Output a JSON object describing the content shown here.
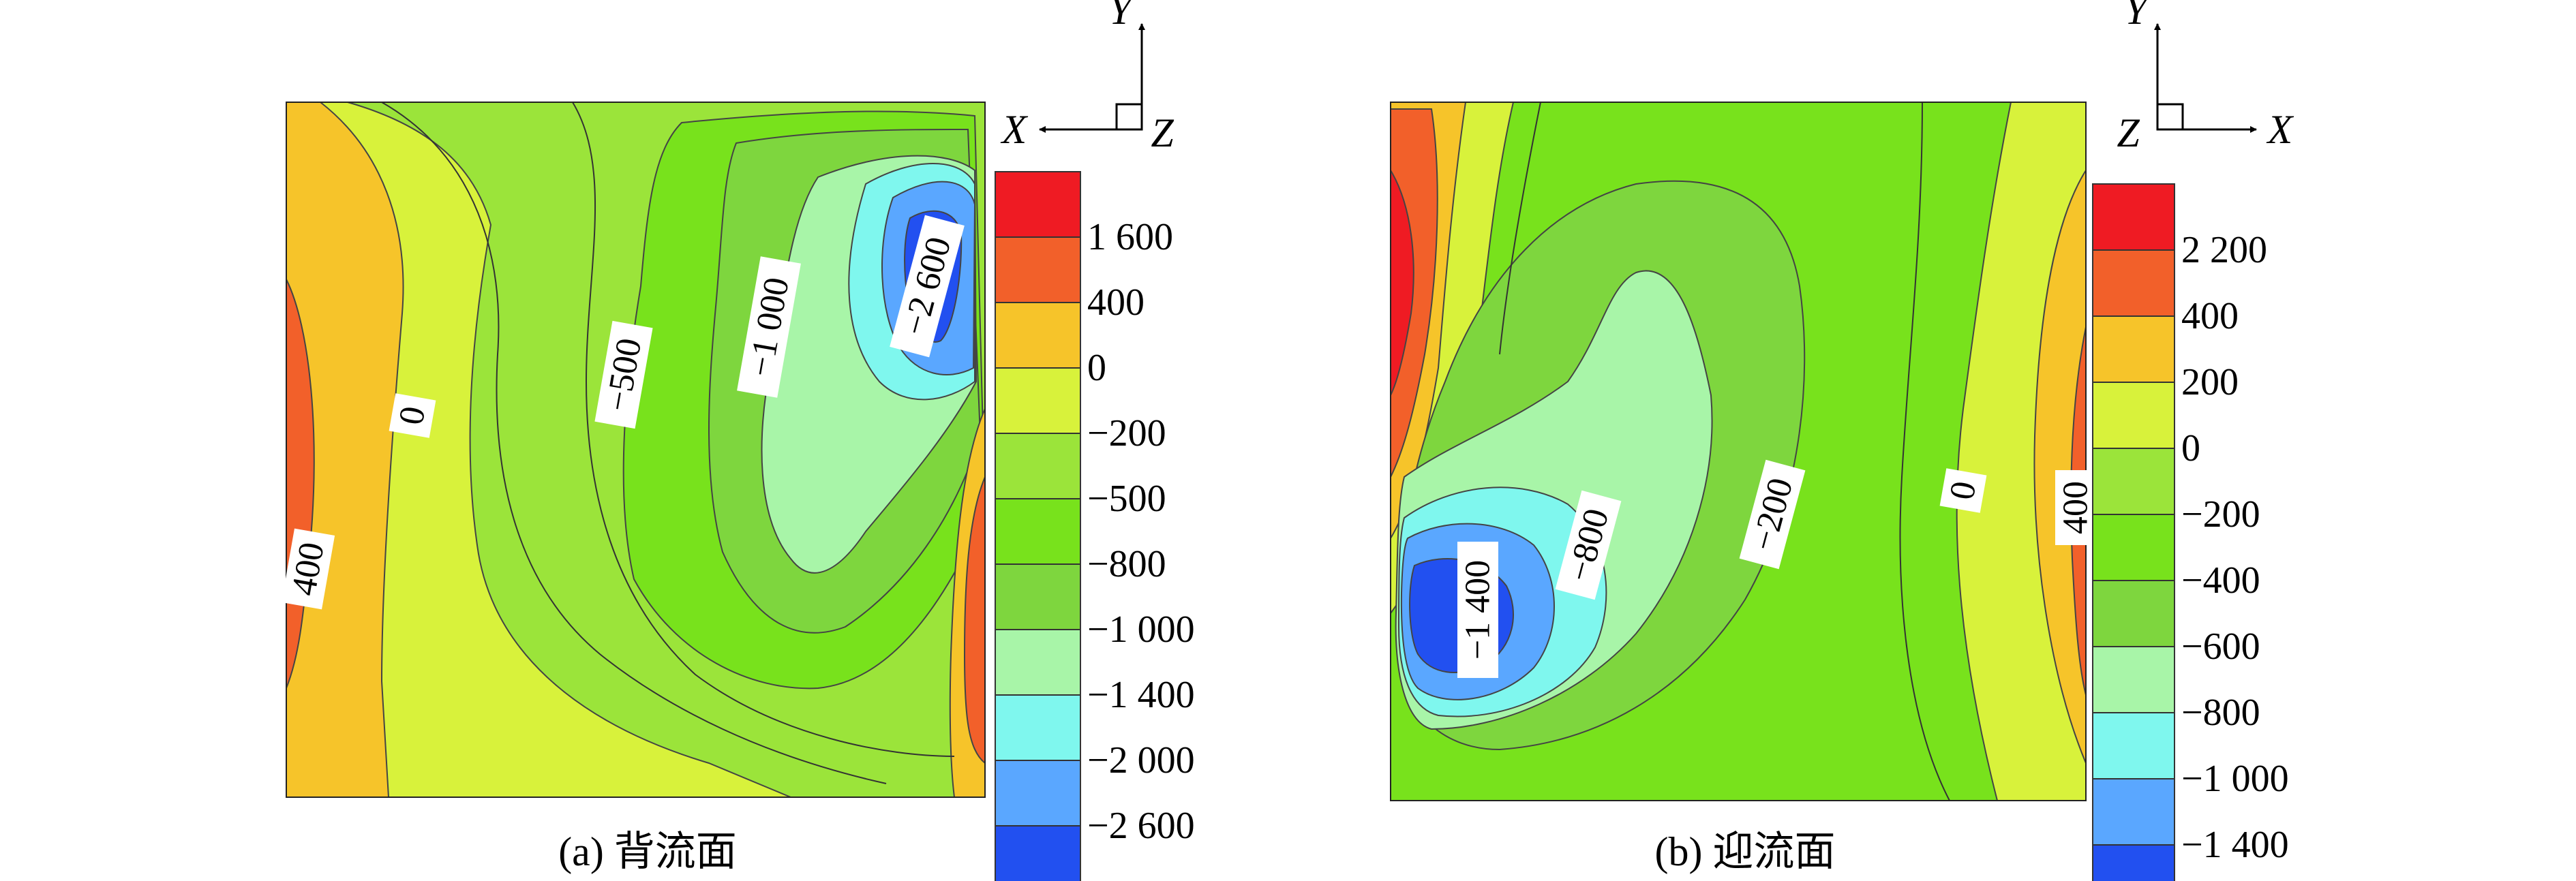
{
  "chart_data": [
    {
      "type": "heatmap",
      "caption": "(a) 背流面",
      "axes": {
        "horizontal": "X",
        "vertical": "Y",
        "normal": "Z",
        "x_direction": "left"
      },
      "legend": {
        "placement": "right",
        "bins": [
          {
            "label": "1 600",
            "color": "#ef1b23"
          },
          {
            "label": "400",
            "color": "#f2602a"
          },
          {
            "label": "0",
            "color": "#f6c42a"
          },
          {
            "label": "−200",
            "color": "#d8f23b"
          },
          {
            "label": "−500",
            "color": "#9be43a"
          },
          {
            "label": "−800",
            "color": "#78e21c"
          },
          {
            "label": "−1 000",
            "color": "#7ed63e"
          },
          {
            "label": "−1 400",
            "color": "#a8f5a8"
          },
          {
            "label": "−2 000",
            "color": "#7ff7ee"
          },
          {
            "label": "−2 600",
            "color": "#5aa7ff"
          },
          {
            "label": "",
            "color": "#2250f0"
          }
        ]
      },
      "contour_labels": [
        "400",
        "0",
        "−500",
        "−1 000",
        "−2 600"
      ]
    },
    {
      "type": "heatmap",
      "caption": "(b) 迎流面",
      "axes": {
        "horizontal": "X",
        "vertical": "Y",
        "normal": "Z",
        "x_direction": "right"
      },
      "legend": {
        "placement": "right",
        "bins": [
          {
            "label": "2 200",
            "color": "#ef1b23"
          },
          {
            "label": "400",
            "color": "#f2602a"
          },
          {
            "label": "200",
            "color": "#f6c42a"
          },
          {
            "label": "0",
            "color": "#d8f23b"
          },
          {
            "label": "−200",
            "color": "#9be43a"
          },
          {
            "label": "−400",
            "color": "#78e21c"
          },
          {
            "label": "−600",
            "color": "#7ed63e"
          },
          {
            "label": "−800",
            "color": "#a8f5a8"
          },
          {
            "label": "−1 000",
            "color": "#7ff7ee"
          },
          {
            "label": "−1 400",
            "color": "#5aa7ff"
          },
          {
            "label": "",
            "color": "#2250f0"
          }
        ]
      },
      "contour_labels": [
        "−1 400",
        "−800",
        "−200",
        "0",
        "400"
      ]
    }
  ]
}
